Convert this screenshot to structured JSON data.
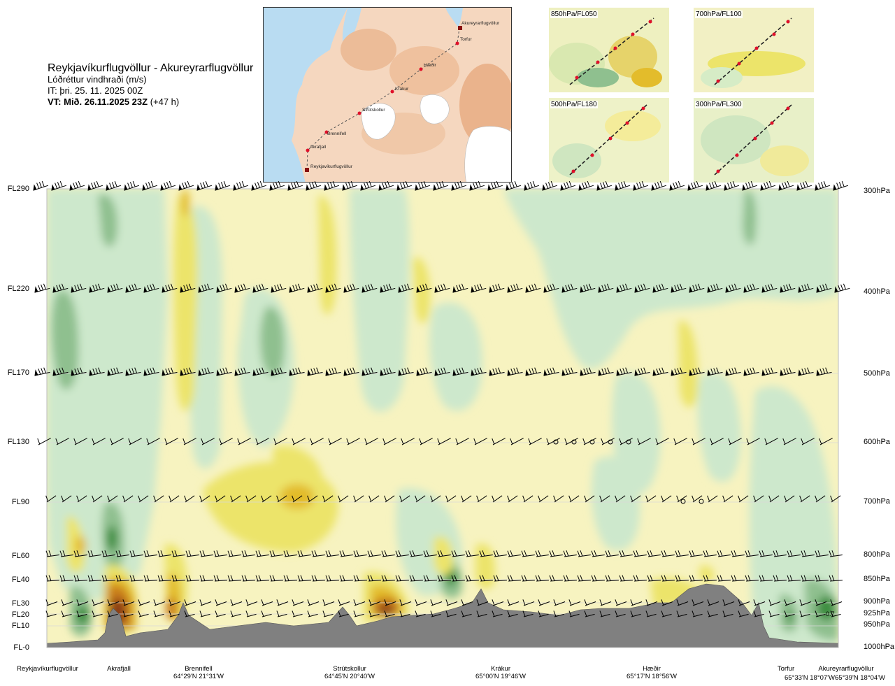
{
  "header": {
    "route_title": "Reykjavíkurflugvöllur - Akureyrarflugvöllur",
    "parameter": "Lóðréttur vindhraði (m/s)",
    "issue_time": "IT: þri. 25. 11. 2025 00Z",
    "valid_time_bold": "VT: Mið. 26.11.2025 23Z",
    "valid_time_offset": " (+47 h)"
  },
  "route_map": {
    "waypoints": [
      "Akureyrarflugvöllur",
      "Torfur",
      "Hæðir",
      "Krákur",
      "Strútskollur",
      "Brennifell",
      "Akrafjall",
      "Reykjavíkurflugvöllur"
    ]
  },
  "insets": [
    {
      "label": "850hPa/FL050"
    },
    {
      "label": "700hPa/FL100"
    },
    {
      "label": "500hPa/FL180"
    },
    {
      "label": "300hPa/FL300"
    }
  ],
  "flight_levels": [
    "FL290",
    "FL220",
    "FL170",
    "FL130",
    "FL90",
    "FL60",
    "FL40",
    "FL30",
    "FL20",
    "FL10",
    "FL-0"
  ],
  "pressure_levels": [
    "300hPa",
    "400hPa",
    "500hPa",
    "600hPa",
    "700hPa",
    "800hPa",
    "850hPa",
    "900hPa",
    "925hPa",
    "950hPa",
    "1000hPa"
  ],
  "stations": [
    {
      "name": "Reykjavíkurflugvöllur",
      "coord": ""
    },
    {
      "name": "Akrafjall",
      "coord": ""
    },
    {
      "name": "Brennifell",
      "coord": "64°29'N 21°31'W"
    },
    {
      "name": "Strútskollur",
      "coord": "64°45'N 20°40'W"
    },
    {
      "name": "Krákur",
      "coord": "65°00'N 19°46'W"
    },
    {
      "name": "Hæðir",
      "coord": "65°17'N 18°56'W"
    },
    {
      "name": "Torfur",
      "coord": "65°33'N 18°07'W"
    },
    {
      "name": "Akureyrarflugvöllur",
      "coord": "65°39'N 18°04'W"
    }
  ],
  "chart_data": {
    "type": "heatmap",
    "title": "Lóðréttur vindhraði (m/s)",
    "x_stations": [
      "Reykjavíkurflugvöllur",
      "Akrafjall",
      "Brennifell",
      "Strútskollur",
      "Krákur",
      "Hæðir",
      "Torfur",
      "Akureyrarflugvöllur"
    ],
    "y_levels_flight": [
      "FL290",
      "FL220",
      "FL170",
      "FL130",
      "FL90",
      "FL60",
      "FL40",
      "FL30",
      "FL20",
      "FL10",
      "FL-0"
    ],
    "y_levels_pressure_hPa": [
      300,
      400,
      500,
      600,
      700,
      800,
      850,
      900,
      925,
      950,
      1000
    ],
    "annotations": [
      "0.7"
    ],
    "colors": {
      "strong_down": "#3e8e41",
      "moderate_down": "#8fc08f",
      "weak_down": "#c8e6c9",
      "calm": "#f7f3c0",
      "weak_up": "#ece46a",
      "moderate_up": "#e3bc2b",
      "strong_up": "#c97d1c",
      "very_strong_up": "#8a3b12",
      "terrain": "#808080"
    }
  }
}
